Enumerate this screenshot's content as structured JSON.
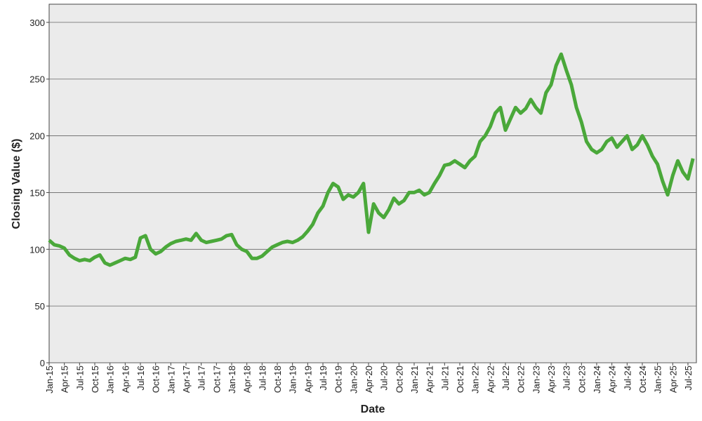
{
  "chart_data": {
    "type": "line",
    "x_label": "Date",
    "y_label": "Closing Value ($)",
    "categories": [
      "Jan-15",
      null,
      null,
      "Apr-15",
      null,
      null,
      "Jul-15",
      null,
      null,
      "Oct-15",
      null,
      null,
      "Jan-16",
      null,
      null,
      "Apr-16",
      null,
      null,
      "Jul-16",
      null,
      null,
      "Oct-16",
      null,
      null,
      "Jan-17",
      null,
      null,
      "Apr-17",
      null,
      null,
      "Jul-17",
      null,
      null,
      "Oct-17",
      null,
      null,
      "Jan-18",
      null,
      null,
      "Apr-18",
      null,
      null,
      "Jul-18",
      null,
      null,
      "Oct-18",
      null,
      null,
      "Jan-19",
      null,
      null,
      "Apr-19",
      null,
      null,
      "Jul-19",
      null,
      null,
      "Oct-19",
      null,
      null,
      "Jan-20",
      null,
      null,
      "Apr-20",
      null,
      null,
      "Jul-20",
      null,
      null,
      "Oct-20",
      null,
      null,
      "Jan-21",
      null,
      null,
      "Apr-21",
      null,
      null,
      "Jul-21",
      null,
      null,
      "Oct-21",
      null,
      null,
      "Jan-22",
      null,
      null,
      "Apr-22",
      null,
      null,
      "Jul-22",
      null,
      null,
      "Oct-22",
      null,
      null,
      "Jan-23",
      null,
      null,
      "Apr-23",
      null,
      null,
      "Jul-23",
      null,
      null,
      "Oct-23",
      null,
      null,
      "Jan-24",
      null,
      null,
      "Apr-24",
      null,
      null,
      "Jul-24",
      null,
      null,
      "Oct-24",
      null,
      null,
      "Jan-25",
      null,
      null,
      "Apr-25",
      null,
      null,
      "Jul-25",
      null
    ],
    "series": [
      {
        "color": "#4aa83a",
        "values": [
          108,
          104,
          103,
          101,
          95,
          92,
          90,
          91,
          90,
          93,
          95,
          88,
          86,
          88,
          90,
          92,
          91,
          93,
          110,
          112,
          100,
          96,
          98,
          102,
          105,
          107,
          108,
          109,
          108,
          114,
          108,
          106,
          107,
          108,
          109,
          112,
          113,
          104,
          100,
          98,
          92,
          92,
          94,
          98,
          102,
          104,
          106,
          107,
          106,
          108,
          111,
          116,
          122,
          132,
          138,
          150,
          158,
          155,
          144,
          148,
          146,
          150,
          158,
          115,
          140,
          132,
          128,
          135,
          145,
          140,
          143,
          150,
          150,
          152,
          148,
          150,
          158,
          165,
          174,
          175,
          178,
          175,
          172,
          178,
          182,
          195,
          200,
          208,
          220,
          225,
          205,
          215,
          225,
          220,
          224,
          232,
          225,
          220,
          238,
          245,
          262,
          272,
          258,
          245,
          225,
          212,
          195,
          188,
          185,
          188,
          195,
          198,
          190,
          195,
          200,
          188,
          192,
          200,
          192,
          182,
          175,
          160,
          148,
          165,
          178,
          168,
          162,
          180
        ]
      }
    ],
    "ylim": [
      0,
      316
    ],
    "yticks": [
      0,
      50,
      100,
      150,
      200,
      250,
      300
    ],
    "grid": true
  }
}
